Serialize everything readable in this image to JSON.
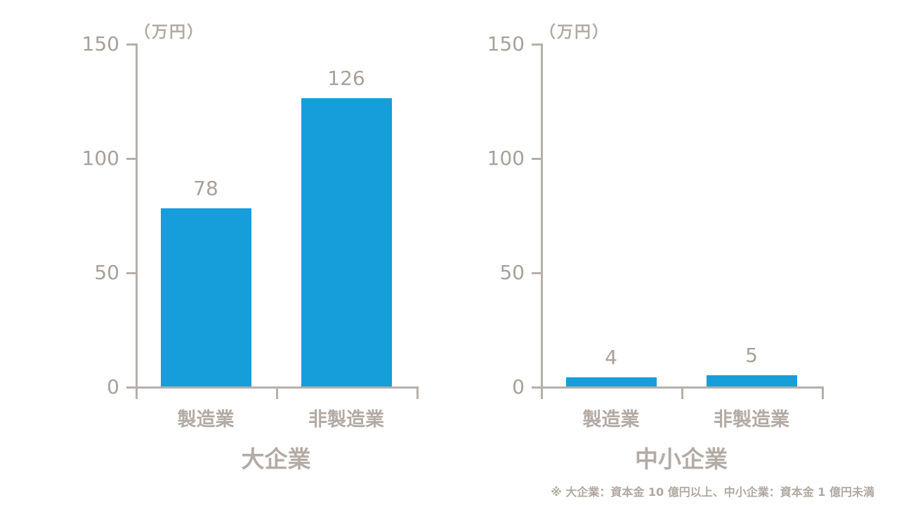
{
  "figure": {
    "footnote": "※ 大企業：資本金 10 億円以上、中小企業：資本金 1 億円未満",
    "colors": {
      "bar": "#169edb",
      "axis": "#b7afa9",
      "tick_text": "#a8a09a",
      "label_text": "#b3aba4"
    }
  },
  "chart_data": [
    {
      "type": "bar",
      "title": "大企業",
      "unit_label": "（万円）",
      "categories": [
        "製造業",
        "非製造業"
      ],
      "values": [
        78,
        126
      ],
      "value_labels": [
        "78",
        "126"
      ],
      "ylim": [
        0,
        150
      ],
      "yticks": [
        0,
        50,
        100,
        150
      ],
      "ytick_labels": [
        "0",
        "50",
        "100",
        "150"
      ],
      "grid": false,
      "legend": "none",
      "bar_color": "#169edb"
    },
    {
      "type": "bar",
      "title": "中小企業",
      "unit_label": "（万円）",
      "categories": [
        "製造業",
        "非製造業"
      ],
      "values": [
        4,
        5
      ],
      "value_labels": [
        "4",
        "5"
      ],
      "ylim": [
        0,
        150
      ],
      "yticks": [
        0,
        50,
        100,
        150
      ],
      "ytick_labels": [
        "0",
        "50",
        "100",
        "150"
      ],
      "grid": false,
      "legend": "none",
      "bar_color": "#169edb"
    }
  ]
}
